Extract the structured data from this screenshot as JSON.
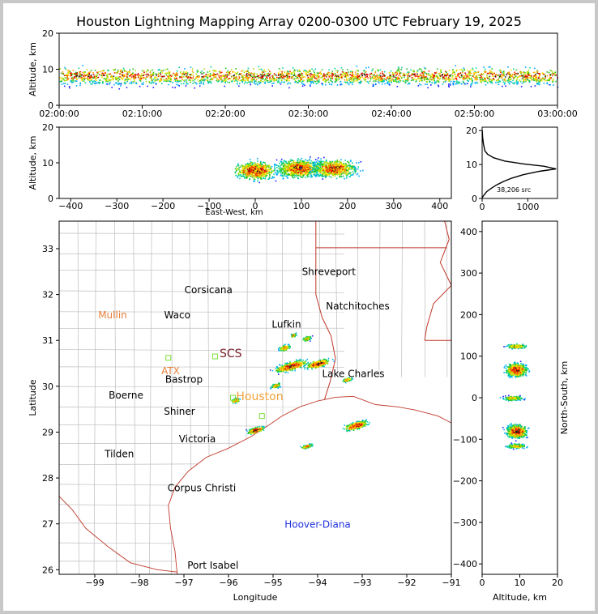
{
  "title": "Houston Lightning Mapping Array 0200-0300 UTC February 19, 2025",
  "colors": {
    "border": "#c0392b",
    "county": "#bdbdbd",
    "text": "#000000"
  },
  "chart_data": [
    {
      "id": "time-height",
      "type": "scatter",
      "ylabel": "Altitude, km",
      "ylim": [
        0,
        20
      ],
      "yticks": [
        "0",
        "10",
        "20"
      ],
      "xticks": [
        "02:00:00",
        "02:10:00",
        "02:20:00",
        "02:30:00",
        "02:40:00",
        "02:50:00",
        "03:00:00"
      ],
      "xlim": [
        0,
        60
      ]
    },
    {
      "id": "ew-altitude",
      "type": "scatter",
      "xlabel": "East-West, km",
      "ylabel": "Altitude, km",
      "xlim": [
        -425,
        425
      ],
      "ylim": [
        0,
        20
      ],
      "xticks": [
        "−400",
        "−300",
        "−200",
        "−100",
        "0",
        "100",
        "200",
        "300",
        "400"
      ],
      "yticks": [
        "0",
        "10",
        "20"
      ],
      "clusters": [
        {
          "x": 0,
          "y": 8
        },
        {
          "x": 95,
          "y": 8.5
        },
        {
          "x": 170,
          "y": 8.5
        }
      ]
    },
    {
      "id": "altitude-histogram",
      "type": "line",
      "annotation": "38,206 src",
      "xticks": [
        "0",
        "1000"
      ],
      "yticks": [
        "0",
        "10",
        "20"
      ],
      "xlim": [
        0,
        1650
      ],
      "ylim": [
        0,
        21
      ],
      "profile": [
        [
          0,
          0.2
        ],
        [
          15,
          0.5
        ],
        [
          40,
          1
        ],
        [
          100,
          2
        ],
        [
          200,
          3
        ],
        [
          320,
          4
        ],
        [
          470,
          5
        ],
        [
          650,
          6
        ],
        [
          900,
          7
        ],
        [
          1250,
          8
        ],
        [
          1620,
          8.7
        ],
        [
          1350,
          9.5
        ],
        [
          900,
          10.2
        ],
        [
          500,
          11
        ],
        [
          250,
          12
        ],
        [
          120,
          13
        ],
        [
          60,
          14
        ],
        [
          30,
          16
        ],
        [
          10,
          18
        ],
        [
          3,
          20
        ]
      ]
    },
    {
      "id": "plan-view",
      "type": "map",
      "xlabel": "Longitude",
      "ylabel": "Latitude",
      "xlim": [
        -99.8,
        -91
      ],
      "ylim": [
        25.9,
        33.6
      ],
      "xticks": [
        "−99",
        "−98",
        "−97",
        "−96",
        "−95",
        "−94",
        "−93",
        "−92",
        "−91"
      ],
      "yticks": [
        "26",
        "27",
        "28",
        "29",
        "30",
        "31",
        "32",
        "33"
      ],
      "places": [
        {
          "name": "Shreveport",
          "lon": -93.75,
          "lat": 32.5,
          "color": "#000000"
        },
        {
          "name": "Corsicana",
          "lon": -96.45,
          "lat": 32.1,
          "color": "#000000"
        },
        {
          "name": "Natchitoches",
          "lon": -93.1,
          "lat": 31.75,
          "color": "#000000"
        },
        {
          "name": "Mullin",
          "lon": -98.6,
          "lat": 31.55,
          "color": "#e8803a"
        },
        {
          "name": "Waco",
          "lon": -97.15,
          "lat": 31.55,
          "color": "#000000"
        },
        {
          "name": "Lufkin",
          "lon": -94.7,
          "lat": 31.35,
          "color": "#000000"
        },
        {
          "name": "SCS",
          "lon": -95.95,
          "lat": 30.7,
          "color": "#7a1f2b"
        },
        {
          "name": "ATX",
          "lon": -97.3,
          "lat": 30.33,
          "color": "#e8803a"
        },
        {
          "name": "Lake Charles",
          "lon": -93.2,
          "lat": 30.27,
          "color": "#000000"
        },
        {
          "name": "Bastrop",
          "lon": -97.0,
          "lat": 30.15,
          "color": "#000000"
        },
        {
          "name": "Boerne",
          "lon": -98.3,
          "lat": 29.8,
          "color": "#000000"
        },
        {
          "name": "Houston",
          "lon": -95.3,
          "lat": 29.77,
          "color": "#f0a23a"
        },
        {
          "name": "Shiner",
          "lon": -97.1,
          "lat": 29.45,
          "color": "#000000"
        },
        {
          "name": "Victoria",
          "lon": -96.7,
          "lat": 28.85,
          "color": "#000000"
        },
        {
          "name": "Tilden",
          "lon": -98.45,
          "lat": 28.52,
          "color": "#000000"
        },
        {
          "name": "Corpus Christi",
          "lon": -96.6,
          "lat": 27.78,
          "color": "#000000"
        },
        {
          "name": "Hoover-Diana",
          "lon": -94.0,
          "lat": 26.99,
          "color": "#2233dd"
        },
        {
          "name": "Port Isabel",
          "lon": -96.35,
          "lat": 26.09,
          "color": "#000000"
        }
      ],
      "stations": [
        {
          "lon": -97.35,
          "lat": 30.62
        },
        {
          "lon": -96.3,
          "lat": 30.65
        },
        {
          "lon": -95.9,
          "lat": 29.75
        },
        {
          "lon": -95.25,
          "lat": 29.35
        }
      ],
      "storms": [
        {
          "lon": -94.6,
          "lat": 30.45,
          "w": 38,
          "h": 10,
          "core": true
        },
        {
          "lon": -94.0,
          "lat": 30.5,
          "w": 28,
          "h": 9,
          "core": true
        },
        {
          "lon": -93.35,
          "lat": 30.15,
          "w": 12,
          "h": 5,
          "core": false
        },
        {
          "lon": -94.75,
          "lat": 30.85,
          "w": 14,
          "h": 7,
          "core": false
        },
        {
          "lon": -94.25,
          "lat": 31.05,
          "w": 10,
          "h": 6,
          "core": false
        },
        {
          "lon": -94.55,
          "lat": 31.12,
          "w": 7,
          "h": 5,
          "core": false
        },
        {
          "lon": -94.95,
          "lat": 30.02,
          "w": 12,
          "h": 6,
          "core": false
        },
        {
          "lon": -95.85,
          "lat": 29.7,
          "w": 10,
          "h": 6,
          "core": false
        },
        {
          "lon": -95.4,
          "lat": 29.05,
          "w": 20,
          "h": 7,
          "core": true
        },
        {
          "lon": -93.15,
          "lat": 29.15,
          "w": 28,
          "h": 9,
          "core": true
        },
        {
          "lon": -94.25,
          "lat": 28.7,
          "w": 14,
          "h": 5,
          "core": false
        }
      ]
    },
    {
      "id": "altitude-ns",
      "type": "scatter",
      "xlabel": "Altitude, km",
      "ylabel": "North-South, km",
      "xlim": [
        0,
        20
      ],
      "ylim": [
        -425,
        425
      ],
      "xticks": [
        "0",
        "10",
        "20"
      ],
      "yticks": [
        "−400",
        "−300",
        "−200",
        "−100",
        "0",
        "100",
        "200",
        "300",
        "400"
      ],
      "clusters": [
        {
          "x": 9,
          "y": 68
        },
        {
          "x": 9,
          "y": -80
        },
        {
          "x": 8,
          "y": 0
        },
        {
          "x": 9,
          "y": 125
        },
        {
          "x": 9,
          "y": -115
        }
      ]
    }
  ]
}
